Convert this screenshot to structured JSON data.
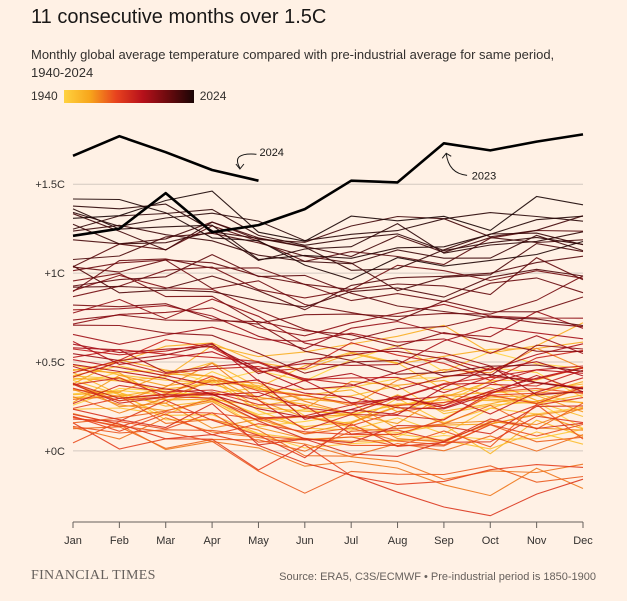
{
  "title": "11 consecutive months over 1.5C",
  "subtitle": "Monthly global average temperature compared with pre-industrial average for same period, 1940-2024",
  "legend": {
    "start_label": "1940",
    "end_label": "2024"
  },
  "footer": {
    "brand": "FINANCIAL TIMES",
    "source": "Source: ERA5, C3S/ECMWF • Pre-industrial period is 1850-1900"
  },
  "colors": {
    "background": "#fff1e5",
    "early": "#ffd23f",
    "mid": "#e8431e",
    "late": "#1a0505",
    "highlight": "#000000"
  },
  "chart_data": {
    "type": "line",
    "x": [
      "Jan",
      "Feb",
      "Mar",
      "Apr",
      "May",
      "Jun",
      "Jul",
      "Aug",
      "Sep",
      "Oct",
      "Nov",
      "Dec"
    ],
    "ylim": [
      -0.4,
      1.85
    ],
    "yticks": [
      {
        "value": 0,
        "label": "+0C"
      },
      {
        "value": 0.5,
        "label": "+0.5C"
      },
      {
        "value": 1,
        "label": "+1C"
      },
      {
        "value": 1.5,
        "label": "+1.5C"
      }
    ],
    "highlight_series": [
      {
        "name": "2024",
        "values": [
          1.66,
          1.77,
          1.68,
          1.58,
          1.52,
          null,
          null,
          null,
          null,
          null,
          null,
          null
        ]
      },
      {
        "name": "2023",
        "values": [
          1.21,
          1.25,
          1.45,
          1.23,
          1.27,
          1.36,
          1.52,
          1.51,
          1.73,
          1.69,
          1.74,
          1.78
        ]
      }
    ],
    "background_series_note": "Individual years 1940-2022 are drawn as thin lines coloured from yellow (1940) to near-black (2022)",
    "annotations": [
      {
        "text": "2024",
        "series": "2024"
      },
      {
        "text": "2023",
        "series": "2023"
      }
    ]
  }
}
